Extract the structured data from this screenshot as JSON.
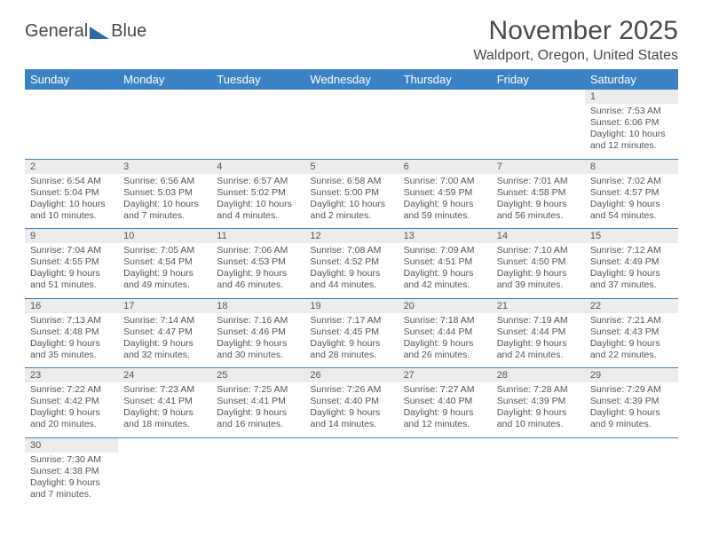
{
  "brand": {
    "word1": "General",
    "word2": "Blue"
  },
  "title": "November 2025",
  "location": "Waldport, Oregon, United States",
  "colors": {
    "header_bg": "#3b82c4",
    "header_text": "#ffffff",
    "daynum_bg": "#ececec",
    "text": "#555555",
    "rule": "#3b82c4",
    "logo_triangle": "#2b6aa8",
    "page_bg": "#ffffff"
  },
  "layout": {
    "type": "table",
    "columns": 7,
    "cell_font_size_pt": 8,
    "header_font_size_pt": 10,
    "title_font_size_pt": 22
  },
  "weekdays": [
    "Sunday",
    "Monday",
    "Tuesday",
    "Wednesday",
    "Thursday",
    "Friday",
    "Saturday"
  ],
  "weeks": [
    [
      null,
      null,
      null,
      null,
      null,
      null,
      {
        "n": "1",
        "sr": "Sunrise: 7:53 AM",
        "ss": "Sunset: 6:06 PM",
        "d1": "Daylight: 10 hours",
        "d2": "and 12 minutes."
      }
    ],
    [
      {
        "n": "2",
        "sr": "Sunrise: 6:54 AM",
        "ss": "Sunset: 5:04 PM",
        "d1": "Daylight: 10 hours",
        "d2": "and 10 minutes."
      },
      {
        "n": "3",
        "sr": "Sunrise: 6:56 AM",
        "ss": "Sunset: 5:03 PM",
        "d1": "Daylight: 10 hours",
        "d2": "and 7 minutes."
      },
      {
        "n": "4",
        "sr": "Sunrise: 6:57 AM",
        "ss": "Sunset: 5:02 PM",
        "d1": "Daylight: 10 hours",
        "d2": "and 4 minutes."
      },
      {
        "n": "5",
        "sr": "Sunrise: 6:58 AM",
        "ss": "Sunset: 5:00 PM",
        "d1": "Daylight: 10 hours",
        "d2": "and 2 minutes."
      },
      {
        "n": "6",
        "sr": "Sunrise: 7:00 AM",
        "ss": "Sunset: 4:59 PM",
        "d1": "Daylight: 9 hours",
        "d2": "and 59 minutes."
      },
      {
        "n": "7",
        "sr": "Sunrise: 7:01 AM",
        "ss": "Sunset: 4:58 PM",
        "d1": "Daylight: 9 hours",
        "d2": "and 56 minutes."
      },
      {
        "n": "8",
        "sr": "Sunrise: 7:02 AM",
        "ss": "Sunset: 4:57 PM",
        "d1": "Daylight: 9 hours",
        "d2": "and 54 minutes."
      }
    ],
    [
      {
        "n": "9",
        "sr": "Sunrise: 7:04 AM",
        "ss": "Sunset: 4:55 PM",
        "d1": "Daylight: 9 hours",
        "d2": "and 51 minutes."
      },
      {
        "n": "10",
        "sr": "Sunrise: 7:05 AM",
        "ss": "Sunset: 4:54 PM",
        "d1": "Daylight: 9 hours",
        "d2": "and 49 minutes."
      },
      {
        "n": "11",
        "sr": "Sunrise: 7:06 AM",
        "ss": "Sunset: 4:53 PM",
        "d1": "Daylight: 9 hours",
        "d2": "and 46 minutes."
      },
      {
        "n": "12",
        "sr": "Sunrise: 7:08 AM",
        "ss": "Sunset: 4:52 PM",
        "d1": "Daylight: 9 hours",
        "d2": "and 44 minutes."
      },
      {
        "n": "13",
        "sr": "Sunrise: 7:09 AM",
        "ss": "Sunset: 4:51 PM",
        "d1": "Daylight: 9 hours",
        "d2": "and 42 minutes."
      },
      {
        "n": "14",
        "sr": "Sunrise: 7:10 AM",
        "ss": "Sunset: 4:50 PM",
        "d1": "Daylight: 9 hours",
        "d2": "and 39 minutes."
      },
      {
        "n": "15",
        "sr": "Sunrise: 7:12 AM",
        "ss": "Sunset: 4:49 PM",
        "d1": "Daylight: 9 hours",
        "d2": "and 37 minutes."
      }
    ],
    [
      {
        "n": "16",
        "sr": "Sunrise: 7:13 AM",
        "ss": "Sunset: 4:48 PM",
        "d1": "Daylight: 9 hours",
        "d2": "and 35 minutes."
      },
      {
        "n": "17",
        "sr": "Sunrise: 7:14 AM",
        "ss": "Sunset: 4:47 PM",
        "d1": "Daylight: 9 hours",
        "d2": "and 32 minutes."
      },
      {
        "n": "18",
        "sr": "Sunrise: 7:16 AM",
        "ss": "Sunset: 4:46 PM",
        "d1": "Daylight: 9 hours",
        "d2": "and 30 minutes."
      },
      {
        "n": "19",
        "sr": "Sunrise: 7:17 AM",
        "ss": "Sunset: 4:45 PM",
        "d1": "Daylight: 9 hours",
        "d2": "and 28 minutes."
      },
      {
        "n": "20",
        "sr": "Sunrise: 7:18 AM",
        "ss": "Sunset: 4:44 PM",
        "d1": "Daylight: 9 hours",
        "d2": "and 26 minutes."
      },
      {
        "n": "21",
        "sr": "Sunrise: 7:19 AM",
        "ss": "Sunset: 4:44 PM",
        "d1": "Daylight: 9 hours",
        "d2": "and 24 minutes."
      },
      {
        "n": "22",
        "sr": "Sunrise: 7:21 AM",
        "ss": "Sunset: 4:43 PM",
        "d1": "Daylight: 9 hours",
        "d2": "and 22 minutes."
      }
    ],
    [
      {
        "n": "23",
        "sr": "Sunrise: 7:22 AM",
        "ss": "Sunset: 4:42 PM",
        "d1": "Daylight: 9 hours",
        "d2": "and 20 minutes."
      },
      {
        "n": "24",
        "sr": "Sunrise: 7:23 AM",
        "ss": "Sunset: 4:41 PM",
        "d1": "Daylight: 9 hours",
        "d2": "and 18 minutes."
      },
      {
        "n": "25",
        "sr": "Sunrise: 7:25 AM",
        "ss": "Sunset: 4:41 PM",
        "d1": "Daylight: 9 hours",
        "d2": "and 16 minutes."
      },
      {
        "n": "26",
        "sr": "Sunrise: 7:26 AM",
        "ss": "Sunset: 4:40 PM",
        "d1": "Daylight: 9 hours",
        "d2": "and 14 minutes."
      },
      {
        "n": "27",
        "sr": "Sunrise: 7:27 AM",
        "ss": "Sunset: 4:40 PM",
        "d1": "Daylight: 9 hours",
        "d2": "and 12 minutes."
      },
      {
        "n": "28",
        "sr": "Sunrise: 7:28 AM",
        "ss": "Sunset: 4:39 PM",
        "d1": "Daylight: 9 hours",
        "d2": "and 10 minutes."
      },
      {
        "n": "29",
        "sr": "Sunrise: 7:29 AM",
        "ss": "Sunset: 4:39 PM",
        "d1": "Daylight: 9 hours",
        "d2": "and 9 minutes."
      }
    ],
    [
      {
        "n": "30",
        "sr": "Sunrise: 7:30 AM",
        "ss": "Sunset: 4:38 PM",
        "d1": "Daylight: 9 hours",
        "d2": "and 7 minutes."
      },
      null,
      null,
      null,
      null,
      null,
      null
    ]
  ]
}
